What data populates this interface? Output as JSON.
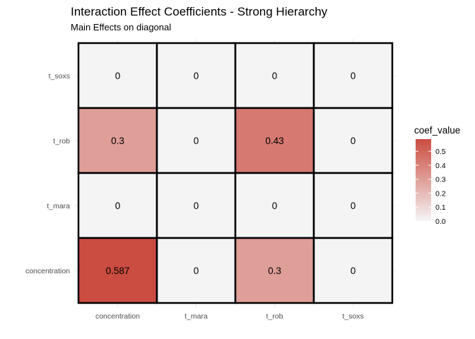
{
  "chart_data": {
    "type": "heatmap",
    "title": "Interaction Effect Coefficients - Strong Hierarchy",
    "subtitle": "Main Effects on diagonal",
    "x_categories": [
      "concentration",
      "t_mara",
      "t_rob",
      "t_soxs"
    ],
    "y_categories": [
      "concentration",
      "t_mara",
      "t_rob",
      "t_soxs"
    ],
    "cells": [
      {
        "x": "concentration",
        "y": "t_soxs",
        "value": 0,
        "label": "0"
      },
      {
        "x": "t_mara",
        "y": "t_soxs",
        "value": 0,
        "label": "0"
      },
      {
        "x": "t_rob",
        "y": "t_soxs",
        "value": 0,
        "label": "0"
      },
      {
        "x": "t_soxs",
        "y": "t_soxs",
        "value": 0,
        "label": "0"
      },
      {
        "x": "concentration",
        "y": "t_rob",
        "value": 0.3,
        "label": "0.3"
      },
      {
        "x": "t_mara",
        "y": "t_rob",
        "value": 0,
        "label": "0"
      },
      {
        "x": "t_rob",
        "y": "t_rob",
        "value": 0.43,
        "label": "0.43"
      },
      {
        "x": "t_soxs",
        "y": "t_rob",
        "value": 0,
        "label": "0"
      },
      {
        "x": "concentration",
        "y": "t_mara",
        "value": 0,
        "label": "0"
      },
      {
        "x": "t_mara",
        "y": "t_mara",
        "value": 0,
        "label": "0"
      },
      {
        "x": "t_rob",
        "y": "t_mara",
        "value": 0,
        "label": "0"
      },
      {
        "x": "t_soxs",
        "y": "t_mara",
        "value": 0,
        "label": "0"
      },
      {
        "x": "concentration",
        "y": "concentration",
        "value": 0.587,
        "label": "0.587"
      },
      {
        "x": "t_mara",
        "y": "concentration",
        "value": 0,
        "label": "0"
      },
      {
        "x": "t_rob",
        "y": "concentration",
        "value": 0.3,
        "label": "0.3"
      },
      {
        "x": "t_soxs",
        "y": "concentration",
        "value": 0,
        "label": "0"
      }
    ],
    "legend": {
      "title": "coef_value",
      "ticks": [
        "0.0",
        "0.1",
        "0.2",
        "0.3",
        "0.4",
        "0.5"
      ],
      "tick_values": [
        0,
        0.1,
        0.2,
        0.3,
        0.4,
        0.5
      ],
      "range": [
        0,
        0.587
      ],
      "low_color": "#f4f4f4",
      "high_color": "#cb4c40",
      "position": "right"
    }
  }
}
